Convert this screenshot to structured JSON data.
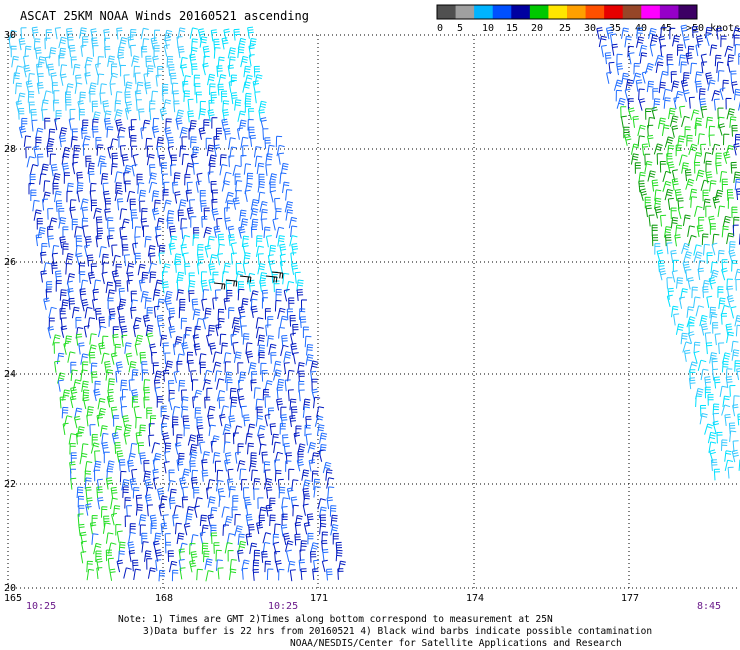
{
  "title": "ASCAT 25KM NOAA Winds 20160521 ascending",
  "legend": {
    "ticks": [
      "0",
      "5",
      "10",
      "15",
      "20",
      "25",
      "30",
      "35",
      "40",
      "45",
      ">50 knots"
    ],
    "colors": [
      "#505050",
      "#a0a0a0",
      "#00b4ff",
      "#0050ff",
      "#0000a0",
      "#00c800",
      "#ffe600",
      "#ffa000",
      "#ff5000",
      "#e60000",
      "#964628",
      "#ff00ff",
      "#9600c8",
      "#3c0064"
    ]
  },
  "axes": {
    "lat_labels": [
      "30",
      "28",
      "26",
      "24",
      "22",
      "20"
    ],
    "lon_labels": [
      "165",
      "168",
      "171",
      "174",
      "177"
    ]
  },
  "times": [
    "10:25",
    "10:25",
    "8:45"
  ],
  "notes": {
    "line1": "Note: 1) Times are GMT 2)Times along bottom correspond to measurement at 25N",
    "line2": "3)Data buffer is 22 hrs from 20160521 4) Black wind barbs indicate possible contamination",
    "line3": "NOAA/NESDIS/Center for Satellite Applications and Research"
  },
  "wind_colors": {
    "light": "#35c8ff",
    "cyan": "#00e0ff",
    "medium": "#1f6cff",
    "strong": "#0018c0",
    "green": "#22dd22",
    "darkgreen": "#0a9a0a",
    "contam": "#000000"
  }
}
